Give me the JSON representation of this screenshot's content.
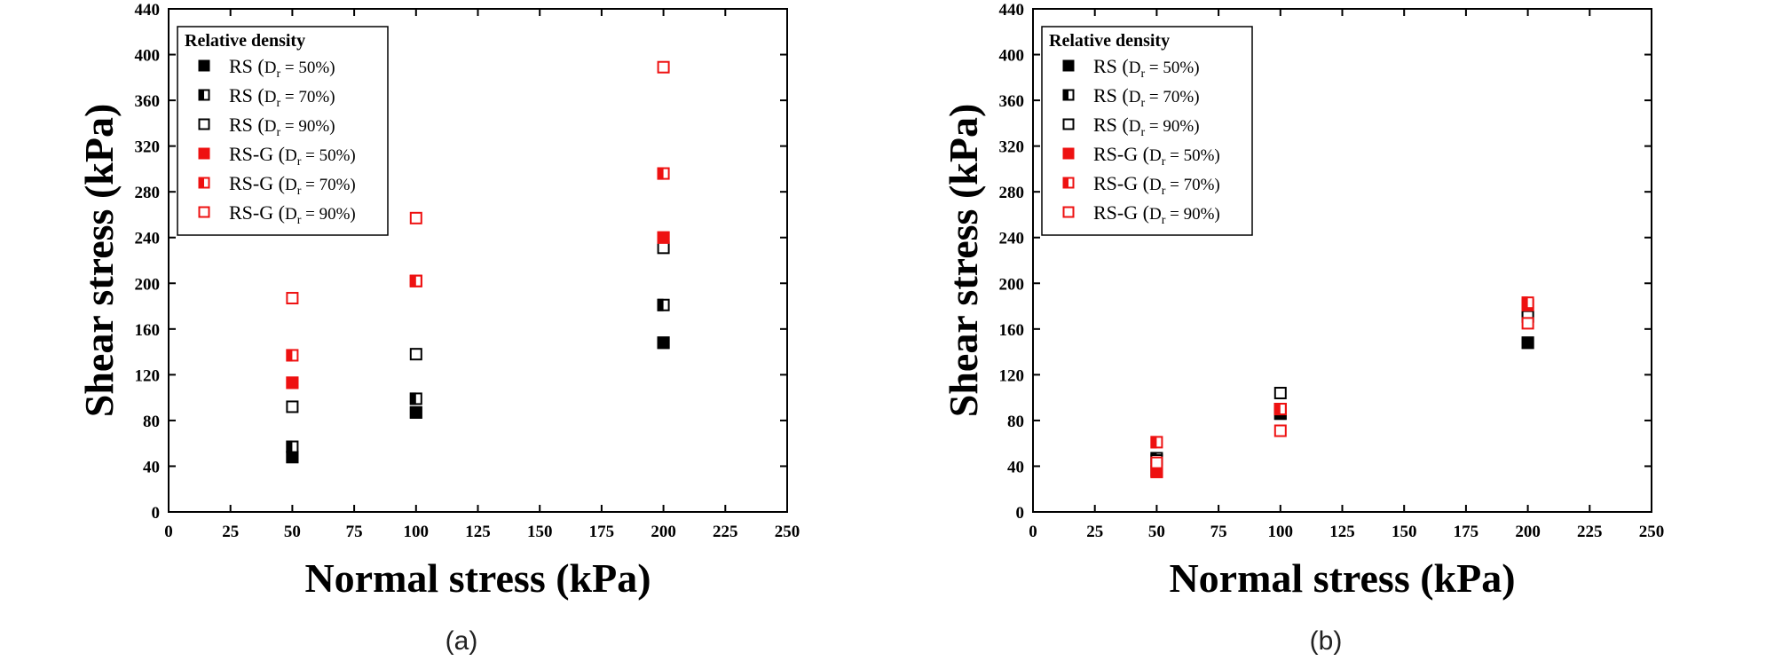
{
  "chart_data": [
    {
      "type": "scatter",
      "panel_label": "(a)",
      "xlabel": "Normal stress (kPa)",
      "ylabel": "Shear stress (kPa)",
      "xlim": [
        0,
        250
      ],
      "ylim": [
        0,
        440
      ],
      "x_ticks": [
        0,
        25,
        50,
        75,
        100,
        125,
        150,
        175,
        200,
        225,
        250
      ],
      "y_ticks": [
        0,
        40,
        80,
        120,
        160,
        200,
        240,
        280,
        320,
        360,
        400,
        440
      ],
      "grid": false,
      "legend": {
        "title": "Relative density",
        "placement": "top-left"
      },
      "series": [
        {
          "name": "RS (Dr = 50%)",
          "color": "#000000",
          "fill": "full",
          "x": [
            50,
            100,
            200
          ],
          "y": [
            48,
            87,
            148
          ]
        },
        {
          "name": "RS (Dr = 70%)",
          "color": "#000000",
          "fill": "half",
          "x": [
            50,
            100,
            200
          ],
          "y": [
            57,
            99,
            181
          ]
        },
        {
          "name": "RS (Dr = 90%)",
          "color": "#000000",
          "fill": "none",
          "x": [
            50,
            100,
            200
          ],
          "y": [
            92,
            138,
            231
          ]
        },
        {
          "name": "RS-G (Dr = 50%)",
          "color": "#ee1111",
          "fill": "full",
          "x": [
            50,
            100,
            200
          ],
          "y": [
            113,
            202,
            240
          ]
        },
        {
          "name": "RS-G (Dr = 70%)",
          "color": "#ee1111",
          "fill": "half",
          "x": [
            50,
            100,
            200
          ],
          "y": [
            137,
            202,
            296
          ]
        },
        {
          "name": "RS-G (Dr = 90%)",
          "color": "#ee1111",
          "fill": "none",
          "x": [
            50,
            100,
            200
          ],
          "y": [
            187,
            257,
            389
          ]
        }
      ]
    },
    {
      "type": "scatter",
      "panel_label": "(b)",
      "xlabel": "Normal stress (kPa)",
      "ylabel": "Shear stress (kPa)",
      "xlim": [
        0,
        250
      ],
      "ylim": [
        0,
        440
      ],
      "x_ticks": [
        0,
        25,
        50,
        75,
        100,
        125,
        150,
        175,
        200,
        225,
        250
      ],
      "y_ticks": [
        0,
        40,
        80,
        120,
        160,
        200,
        240,
        280,
        320,
        360,
        400,
        440
      ],
      "grid": false,
      "legend": {
        "title": "Relative density",
        "placement": "top-left"
      },
      "series": [
        {
          "name": "RS (Dr = 50%)",
          "color": "#000000",
          "fill": "full",
          "x": [
            50,
            100,
            200
          ],
          "y": [
            36,
            86,
            148
          ]
        },
        {
          "name": "RS (Dr = 70%)",
          "color": "#000000",
          "fill": "half",
          "x": [
            50,
            100,
            200
          ],
          "y": [
            47,
            90,
            171
          ]
        },
        {
          "name": "RS (Dr = 90%)",
          "color": "#000000",
          "fill": "none",
          "x": [
            50,
            100,
            200
          ],
          "y": [
            45,
            104,
            171
          ]
        },
        {
          "name": "RS-G (Dr = 50%)",
          "color": "#ee1111",
          "fill": "full",
          "x": [
            50,
            100,
            200
          ],
          "y": [
            35,
            90,
            181
          ]
        },
        {
          "name": "RS-G (Dr = 70%)",
          "color": "#ee1111",
          "fill": "half",
          "x": [
            50,
            100,
            200
          ],
          "y": [
            61,
            90,
            183
          ]
        },
        {
          "name": "RS-G (Dr = 90%)",
          "color": "#ee1111",
          "fill": "none",
          "x": [
            50,
            100,
            200
          ],
          "y": [
            43,
            71,
            165
          ]
        }
      ]
    }
  ]
}
